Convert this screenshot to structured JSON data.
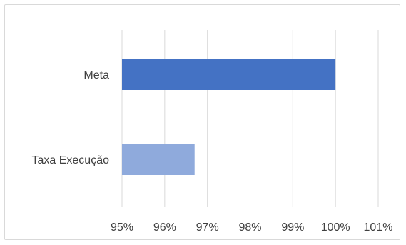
{
  "chart_data": {
    "type": "bar",
    "orientation": "horizontal",
    "categories": [
      "Meta",
      "Taxa Execução"
    ],
    "series": [
      {
        "values": [
          100,
          96.7
        ],
        "colors": [
          "#4472c4",
          "#8faadc"
        ]
      }
    ],
    "xlim": [
      95,
      101
    ],
    "xticks": [
      "95%",
      "96%",
      "97%",
      "98%",
      "99%",
      "100%",
      "101%"
    ],
    "grid": true,
    "legend": "none",
    "title": "",
    "xlabel": "",
    "ylabel": ""
  }
}
